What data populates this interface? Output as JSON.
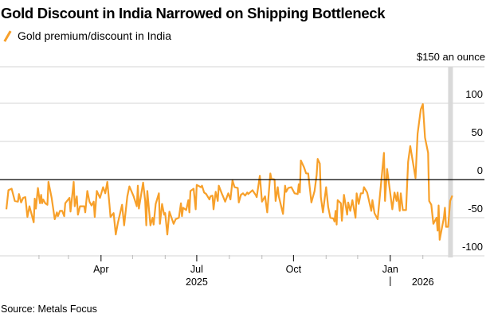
{
  "chart_data": {
    "type": "line",
    "title": "Gold Discount in India Narrowed on Shipping Bottleneck",
    "legend": [
      "Gold premium/discount in India"
    ],
    "legend_placement": "top-left",
    "annotation": "$150 an ounce",
    "source": "Source: Metals Focus",
    "xlabel": "",
    "ylabel": "",
    "x_unit": "days since 2025-01-01",
    "xlim": [
      0,
      433
    ],
    "ylim": [
      -110,
      110
    ],
    "yticks": [
      100,
      50,
      0,
      -50,
      -100
    ],
    "ytick_labels": [
      "100",
      "50",
      "0",
      "-50",
      "-100"
    ],
    "xticks": [
      {
        "day": 90,
        "label": "Apr"
      },
      {
        "day": 181,
        "label": "Jul"
      },
      {
        "day": 273,
        "label": "Oct"
      },
      {
        "day": 365,
        "label": "Jan"
      }
    ],
    "minor_xticks": [
      31,
      59,
      120,
      151,
      212,
      243,
      304,
      334,
      396
    ],
    "year_labels": [
      {
        "day": 181,
        "label": "2025"
      },
      {
        "day": 396,
        "label": "2026"
      }
    ],
    "year_separator_day": 365,
    "shaded_range": [
      420,
      424
    ],
    "grid": true,
    "color": "#f7a02a",
    "series": [
      {
        "name": "Gold premium/discount in India",
        "x": [
          0,
          2,
          5,
          8,
          11,
          12,
          14,
          16,
          18,
          20,
          22,
          26,
          27,
          28,
          30,
          32,
          33,
          34,
          35,
          37,
          39,
          40,
          43,
          46,
          48,
          49,
          51,
          53,
          55,
          56,
          60,
          61,
          64,
          65,
          67,
          68,
          70,
          74,
          75,
          77,
          79,
          81,
          83,
          84,
          86,
          89,
          92,
          94,
          96,
          98,
          99,
          102,
          104,
          106,
          110,
          112,
          115,
          117,
          121,
          124,
          125,
          126,
          130,
          132,
          133,
          134,
          137,
          139,
          140,
          142,
          145,
          146,
          148,
          150,
          151,
          153,
          155,
          159,
          161,
          164,
          166,
          167,
          168,
          171,
          173,
          174,
          175,
          178,
          180,
          181,
          185,
          186,
          188,
          190,
          193,
          194,
          196,
          197,
          199,
          201,
          202,
          205,
          206,
          208,
          211,
          213,
          215,
          217,
          220,
          221,
          223,
          225,
          227,
          229,
          230,
          234,
          237,
          238,
          241,
          243,
          246,
          248,
          251,
          252,
          255,
          256,
          258,
          259,
          263,
          265,
          266,
          268,
          271,
          274,
          277,
          278,
          279,
          280,
          283,
          285,
          287,
          290,
          293,
          295,
          296,
          298,
          299,
          301,
          304,
          306,
          308,
          311,
          312,
          313,
          314,
          315,
          318,
          319,
          321,
          324,
          325,
          327,
          329,
          332,
          333,
          335,
          337,
          339,
          340,
          343,
          347,
          348,
          350,
          353,
          359,
          360,
          362,
          367,
          369,
          371,
          372,
          374,
          375,
          377,
          380,
          382,
          384,
          389,
          391,
          394,
          396,
          398,
          401,
          402,
          404,
          406,
          409,
          410,
          411,
          412,
          416,
          417,
          418,
          420,
          422,
          424
        ],
        "y": [
          -39,
          -14,
          -12,
          -28,
          -29,
          -19,
          -30,
          -24,
          -23,
          -49,
          -35,
          -56,
          -25,
          -38,
          -11,
          -31,
          -20,
          -31,
          -26,
          -31,
          -33,
          -3,
          -24,
          -52,
          -43,
          -48,
          -41,
          -41,
          -48,
          -31,
          -24,
          -42,
          -3,
          -35,
          -22,
          -46,
          -35,
          -35,
          -43,
          -15,
          -29,
          -34,
          -29,
          -49,
          -15,
          -24,
          -10,
          -18,
          -3,
          -33,
          -49,
          -44,
          -72,
          -57,
          -33,
          -60,
          -22,
          -9,
          -22,
          -35,
          -8,
          -38,
          -4,
          -28,
          -60,
          -15,
          -60,
          -50,
          -59,
          -32,
          -18,
          -58,
          -32,
          -46,
          -44,
          -72,
          -42,
          -58,
          -52,
          -50,
          -31,
          -48,
          -37,
          -40,
          -27,
          -43,
          -15,
          -12,
          -39,
          -7,
          -10,
          -8,
          -17,
          -19,
          -26,
          -22,
          -21,
          -39,
          -16,
          -28,
          -8,
          -19,
          -22,
          -29,
          -18,
          -26,
          -1,
          -10,
          -11,
          -30,
          -20,
          -18,
          -21,
          -17,
          -19,
          -14,
          -20,
          -23,
          5,
          -29,
          -22,
          -43,
          8,
          1,
          0,
          -28,
          -10,
          -22,
          -45,
          -8,
          -16,
          -11,
          -10,
          -18,
          -19,
          -6,
          -17,
          25,
          16,
          8,
          8,
          -30,
          -15,
          6,
          27,
          21,
          -23,
          -43,
          -10,
          -36,
          -50,
          -51,
          -55,
          -41,
          -59,
          -27,
          -31,
          -54,
          -20,
          -46,
          -30,
          -41,
          -27,
          -50,
          -18,
          -32,
          -18,
          -18,
          -10,
          -17,
          -41,
          -27,
          -44,
          -52,
          35,
          -28,
          14,
          -39,
          -17,
          -28,
          -17,
          -41,
          -18,
          -40,
          -40,
          23,
          44,
          2,
          60,
          92,
          99,
          55,
          35,
          -28,
          -33,
          -58,
          -50,
          -67,
          -34,
          -79,
          -50,
          -37,
          -62,
          -62,
          -28,
          -21
        ]
      }
    ]
  }
}
